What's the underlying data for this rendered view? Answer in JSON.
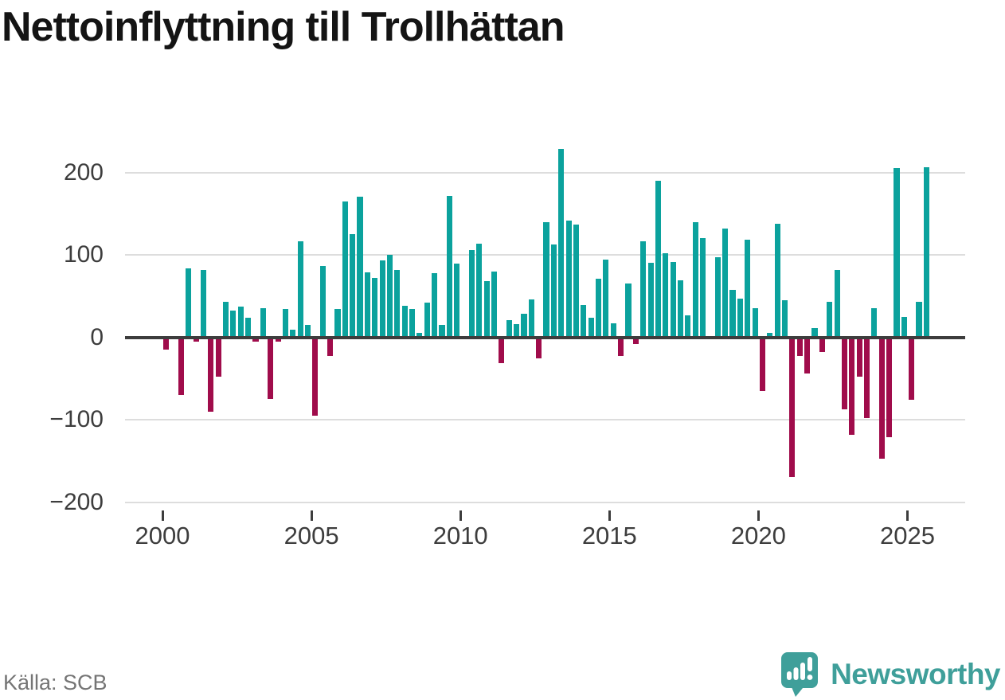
{
  "title": "Nettoinflyttning till Trollhättan",
  "source": {
    "label": "Källa: SCB"
  },
  "branding": {
    "name": "Newsworthy"
  },
  "colors": {
    "positive_bar": "#0ba29d",
    "negative_bar": "#a00c4b",
    "grid": "#dddddd",
    "axis_line": "#3d3d3d",
    "axis_text": "#3d3d3d",
    "title_text": "#141414",
    "source_text": "#757575",
    "brand_teal": "#3f9f9a"
  },
  "chart_data": {
    "type": "bar",
    "title": "Nettoinflyttning till Trollhättan",
    "frequency": "quarterly",
    "x_range": [
      "2000 Q1",
      "2025 Q3"
    ],
    "ylim": [
      -200,
      230
    ],
    "yticks": [
      200,
      100,
      0,
      -100,
      -200
    ],
    "ytick_labels": [
      "200",
      "100",
      "0",
      "−100",
      "−200"
    ],
    "xticks": [
      2000,
      2005,
      2010,
      2015,
      2020,
      2025
    ],
    "grid": true,
    "legend": false,
    "series": [
      {
        "year": 2000,
        "values": [
          -15,
          0,
          -70,
          84
        ]
      },
      {
        "year": 2001,
        "values": [
          -5,
          82,
          -90,
          -48
        ]
      },
      {
        "year": 2002,
        "values": [
          43,
          32,
          37,
          24
        ]
      },
      {
        "year": 2003,
        "values": [
          -5,
          35,
          -75,
          -5
        ]
      },
      {
        "year": 2004,
        "values": [
          34,
          9,
          116,
          15
        ]
      },
      {
        "year": 2005,
        "values": [
          -95,
          87,
          -23,
          34
        ]
      },
      {
        "year": 2006,
        "values": [
          165,
          125,
          171,
          79
        ]
      },
      {
        "year": 2007,
        "values": [
          72,
          93,
          100,
          82
        ]
      },
      {
        "year": 2008,
        "values": [
          38,
          34,
          5,
          42
        ]
      },
      {
        "year": 2009,
        "values": [
          78,
          15,
          172,
          89
        ]
      },
      {
        "year": 2010,
        "values": [
          0,
          106,
          114,
          68
        ]
      },
      {
        "year": 2011,
        "values": [
          80,
          -31,
          21,
          16
        ]
      },
      {
        "year": 2012,
        "values": [
          29,
          46,
          -26,
          140
        ]
      },
      {
        "year": 2013,
        "values": [
          113,
          229,
          142,
          137
        ]
      },
      {
        "year": 2014,
        "values": [
          39,
          24,
          71,
          94
        ]
      },
      {
        "year": 2015,
        "values": [
          17,
          -23,
          65,
          -8
        ]
      },
      {
        "year": 2016,
        "values": [
          116,
          90,
          190,
          102
        ]
      },
      {
        "year": 2017,
        "values": [
          91,
          69,
          27,
          140
        ]
      },
      {
        "year": 2018,
        "values": [
          120,
          0,
          97,
          132
        ]
      },
      {
        "year": 2019,
        "values": [
          58,
          47,
          118,
          35
        ]
      },
      {
        "year": 2020,
        "values": [
          -65,
          5,
          138,
          45
        ]
      },
      {
        "year": 2021,
        "values": [
          -170,
          -23,
          -44,
          11
        ]
      },
      {
        "year": 2022,
        "values": [
          -18,
          43,
          82,
          -87
        ]
      },
      {
        "year": 2023,
        "values": [
          -118,
          -48,
          -98,
          35
        ]
      },
      {
        "year": 2024,
        "values": [
          -147,
          -121,
          205,
          25
        ]
      },
      {
        "year": 2025,
        "values": [
          -76,
          43,
          206
        ]
      }
    ]
  }
}
